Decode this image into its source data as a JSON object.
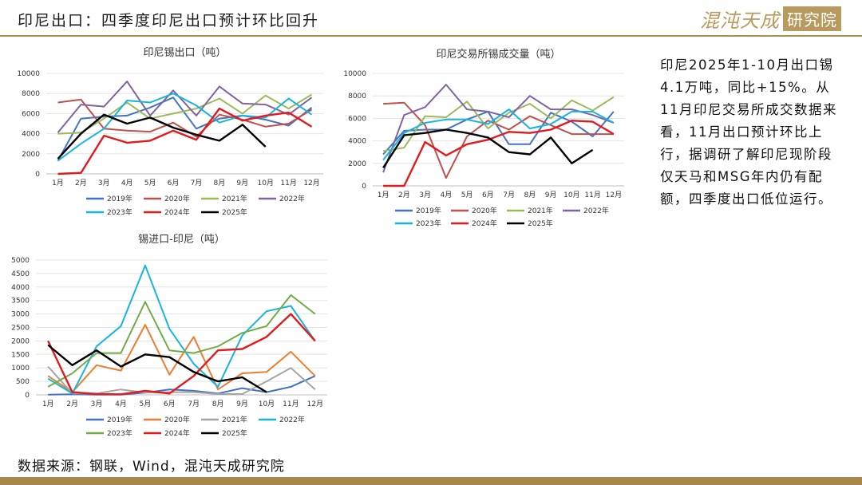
{
  "header": {
    "title": "印尼出口：四季度印尼出口预计环比回升",
    "brand_main": "混沌天成",
    "brand_box": "研究院"
  },
  "note": "印尼2025年1-10月出口锡4.1万吨，同比+15%。从11月印尼交易所成交数据来看，11月出口预计环比上行，据调研了解印尼现阶段仅天马和MSG年内仍有配额，四季度出口低位运行。",
  "source": "数据来源：钢联，Wind，混沌天成研究院",
  "colors": {
    "2019年": "#4472c4",
    "2020年": "#c0504d",
    "2021年": "#9bbb59",
    "2022年": "#8064a2",
    "2023年": "#17b5de",
    "2024年": "#e31a1c",
    "2025年": "#000000",
    "2021年_c3": "#a5a5a5",
    "2022年_c3": "#17b5de",
    "2020年_c3": "#ed7d31",
    "2023年_c3": "#70ad47",
    "header_line": "#b08e4f",
    "brand": "#b89a5e"
  },
  "chart_data": [
    {
      "type": "line",
      "title": "印尼锡出口（吨）",
      "categories": [
        "1月",
        "2月",
        "3月",
        "4月",
        "5月",
        "6月",
        "7月",
        "8月",
        "9月",
        "10月",
        "11月",
        "12月"
      ],
      "ylim": [
        0,
        10000
      ],
      "yticks": [
        0,
        2000,
        4000,
        6000,
        8000,
        10000
      ],
      "grid": true,
      "legend": "bottom",
      "series": [
        {
          "name": "2019年",
          "values": [
            1300,
            5500,
            5700,
            5800,
            6600,
            7600,
            4500,
            5500,
            5800,
            5400,
            4800,
            6600
          ]
        },
        {
          "name": "2020年",
          "values": [
            7100,
            7400,
            4500,
            4300,
            4200,
            5100,
            3700,
            5900,
            5400,
            4700,
            5000,
            6400
          ]
        },
        {
          "name": "2021年",
          "values": [
            4000,
            4100,
            5500,
            7100,
            5500,
            6000,
            6500,
            7500,
            6000,
            7800,
            6500,
            7900
          ]
        },
        {
          "name": "2022年",
          "values": [
            4100,
            6900,
            6700,
            9200,
            5800,
            8300,
            5800,
            8700,
            7000,
            6900,
            5900,
            7600
          ]
        },
        {
          "name": "2023年",
          "values": [
            1300,
            3000,
            4500,
            7300,
            7100,
            8000,
            6800,
            5100,
            5800,
            5600,
            7500,
            5900
          ]
        },
        {
          "name": "2024年",
          "values": [
            0,
            100,
            3800,
            3100,
            3300,
            4300,
            3400,
            6500,
            5300,
            5800,
            6100,
            4700
          ]
        },
        {
          "name": "2025年",
          "values": [
            1500,
            4000,
            5900,
            5000,
            5600,
            4600,
            3900,
            3300,
            4900,
            2700,
            null,
            null
          ]
        }
      ]
    },
    {
      "type": "line",
      "title": "印尼交易所锡成交量（吨）",
      "categories": [
        "1月",
        "2月",
        "3月",
        "4月",
        "5月",
        "6月",
        "7月",
        "8月",
        "9月",
        "10月",
        "11月",
        "12月"
      ],
      "ylim": [
        0,
        10000
      ],
      "yticks": [
        0,
        2000,
        4000,
        6000,
        8000,
        10000
      ],
      "grid": true,
      "legend": "bottom",
      "series": [
        {
          "name": "2019年",
          "values": [
            2800,
            4900,
            5000,
            5000,
            5900,
            6600,
            3700,
            3700,
            6500,
            5700,
            4400,
            6600
          ]
        },
        {
          "name": "2020年",
          "values": [
            7300,
            7400,
            5400,
            700,
            4400,
            5800,
            5000,
            6200,
            5400,
            4600,
            4600,
            4600
          ]
        },
        {
          "name": "2021年",
          "values": [
            3100,
            3400,
            6200,
            6100,
            7500,
            5100,
            6500,
            7300,
            6000,
            7600,
            6700,
            7900
          ]
        },
        {
          "name": "2022年",
          "values": [
            1200,
            6300,
            7000,
            9000,
            6800,
            6600,
            6100,
            8000,
            6800,
            6800,
            6300,
            5600
          ]
        },
        {
          "name": "2023年",
          "values": [
            2300,
            4700,
            5600,
            5900,
            5900,
            5500,
            6800,
            5100,
            5500,
            6600,
            6600,
            5600
          ]
        },
        {
          "name": "2024年",
          "values": [
            0,
            0,
            3900,
            2700,
            3700,
            4100,
            4800,
            4700,
            5000,
            5800,
            5700,
            4600
          ]
        },
        {
          "name": "2025年",
          "values": [
            1600,
            4500,
            4700,
            5000,
            4700,
            4300,
            3000,
            2800,
            4300,
            2000,
            3200,
            null
          ]
        }
      ]
    },
    {
      "type": "line",
      "title": "锡进口-印尼（吨）",
      "categories": [
        "1月",
        "2月",
        "3月",
        "4月",
        "5月",
        "6月",
        "7月",
        "8月",
        "9月",
        "10月",
        "11月",
        "12月"
      ],
      "ylim": [
        0,
        5000
      ],
      "yticks": [
        0,
        500,
        1000,
        1500,
        2000,
        2500,
        3000,
        3500,
        4000,
        4500,
        5000
      ],
      "grid": true,
      "legend": "bottom",
      "series": [
        {
          "name": "2019年",
          "values": [
            10,
            20,
            5,
            10,
            80,
            200,
            150,
            50,
            250,
            100,
            300,
            700
          ]
        },
        {
          "name": "2020年",
          "values": [
            700,
            100,
            1100,
            900,
            2600,
            750,
            2150,
            200,
            800,
            850,
            1600,
            700
          ]
        },
        {
          "name": "2021年",
          "values": [
            1050,
            50,
            50,
            200,
            80,
            100,
            100,
            30,
            30,
            500,
            1000,
            200
          ]
        },
        {
          "name": "2022年",
          "values": [
            600,
            50,
            1800,
            2550,
            4800,
            2450,
            1150,
            300,
            2200,
            3100,
            3300,
            2000
          ]
        },
        {
          "name": "2023年",
          "values": [
            300,
            800,
            1550,
            1550,
            3450,
            1650,
            1550,
            1800,
            2300,
            2550,
            3700,
            3000
          ]
        },
        {
          "name": "2024年",
          "values": [
            2000,
            100,
            30,
            20,
            150,
            50,
            700,
            1650,
            1700,
            2150,
            3000,
            2000
          ]
        },
        {
          "name": "2025年",
          "values": [
            1850,
            1100,
            1650,
            1050,
            1500,
            1400,
            850,
            500,
            650,
            100,
            null,
            null
          ]
        }
      ]
    }
  ]
}
